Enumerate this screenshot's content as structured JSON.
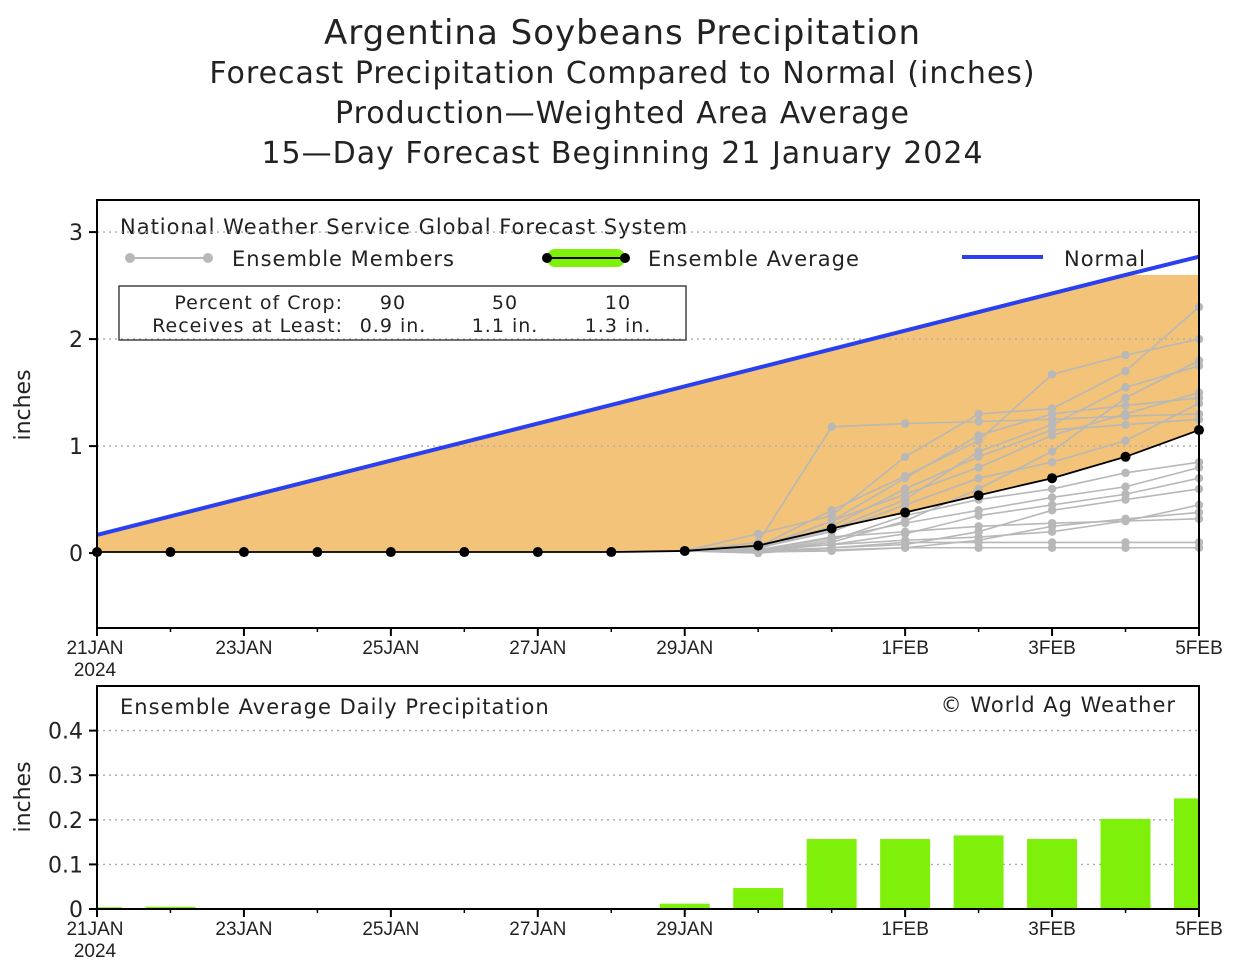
{
  "titles": {
    "line1": "Argentina Soybeans Precipitation",
    "line2": "Forecast Precipitation Compared to Normal (inches)",
    "line3": "Production—Weighted Area Average",
    "line4": "15—Day Forecast Beginning 21 January 2024"
  },
  "colors": {
    "normal": "#2a3ff0",
    "fill": "#f2c378",
    "average": "#000000",
    "members": "#b8b8b8",
    "bars": "#7ef00a",
    "grid": "#aaaaaa"
  },
  "chart_data": [
    {
      "type": "line",
      "title": "National Weather Service Global Forecast System",
      "ylabel": "inches",
      "ylim": [
        -0.7,
        3.3
      ],
      "yticks": [
        "0",
        "1",
        "2",
        "3"
      ],
      "xlim": [
        0,
        15
      ],
      "x_tick_labels": [
        {
          "day": 0,
          "label": "21JAN",
          "sub": "2024"
        },
        {
          "day": 2,
          "label": "23JAN"
        },
        {
          "day": 4,
          "label": "25JAN"
        },
        {
          "day": 6,
          "label": "27JAN"
        },
        {
          "day": 8,
          "label": "29JAN"
        },
        {
          "day": 11,
          "label": "1FEB"
        },
        {
          "day": 13,
          "label": "3FEB"
        },
        {
          "day": 15,
          "label": "5FEB"
        }
      ],
      "legend": {
        "members_label": "Ensemble Members",
        "average_label": "Ensemble Average",
        "normal_label": "Normal"
      },
      "crop_table": {
        "row1_label": "Percent of Crop:",
        "row2_label": "Receives at Least:",
        "percents": [
          "90",
          "50",
          "10"
        ],
        "amounts": [
          "0.9 in.",
          "1.1 in.",
          "1.3 in."
        ]
      },
      "normal": {
        "x": [
          0,
          14,
          15
        ],
        "y": [
          0.17,
          2.6,
          2.77
        ]
      },
      "normal_fill_cap": 2.6,
      "ensemble_average": {
        "x": [
          0,
          1,
          2,
          3,
          4,
          5,
          6,
          7,
          8,
          9,
          10,
          11,
          12,
          13,
          14,
          15
        ],
        "y": [
          0.01,
          0.01,
          0.01,
          0.01,
          0.01,
          0.01,
          0.01,
          0.01,
          0.02,
          0.07,
          0.23,
          0.38,
          0.54,
          0.7,
          0.9,
          1.15
        ]
      },
      "ensemble_members": [
        {
          "y9": 0.03,
          "y10": 0.08,
          "y11": 0.12,
          "y12": 0.15,
          "y13": 0.2,
          "y14": 0.3,
          "y15": 0.45
        },
        {
          "y9": 0.1,
          "y10": 1.18,
          "y11": 1.21,
          "y12": 1.23,
          "y13": 1.25,
          "y14": 1.28,
          "y15": 1.3
        },
        {
          "y9": 0.06,
          "y10": 0.4,
          "y11": 0.72,
          "y12": 1.05,
          "y13": 1.67,
          "y14": 1.85,
          "y15": 2.0
        },
        {
          "y9": 0.02,
          "y10": 0.05,
          "y11": 0.1,
          "y12": 0.1,
          "y13": 0.1,
          "y14": 0.1,
          "y15": 0.1
        },
        {
          "y9": 0.02,
          "y10": 0.1,
          "y11": 0.3,
          "y12": 0.6,
          "y13": 0.95,
          "y14": 1.45,
          "y15": 1.8
        },
        {
          "y9": 0.04,
          "y10": 0.3,
          "y11": 0.55,
          "y12": 0.8,
          "y13": 1.1,
          "y14": 1.3,
          "y15": 1.5
        },
        {
          "y9": 0.01,
          "y10": 0.02,
          "y11": 0.05,
          "y12": 0.12,
          "y13": 0.25,
          "y14": 0.32,
          "y15": 0.38
        },
        {
          "y9": 0.05,
          "y10": 0.2,
          "y11": 0.45,
          "y12": 0.7,
          "y13": 0.85,
          "y14": 1.05,
          "y15": 1.4
        },
        {
          "y9": 0.18,
          "y10": 0.35,
          "y11": 0.9,
          "y12": 1.3,
          "y13": 1.35,
          "y14": 1.7,
          "y15": 2.3
        },
        {
          "y9": 0.0,
          "y10": 0.05,
          "y11": 0.08,
          "y12": 0.2,
          "y13": 0.4,
          "y14": 0.5,
          "y15": 0.6
        },
        {
          "y9": 0.03,
          "y10": 0.15,
          "y11": 0.2,
          "y12": 0.25,
          "y13": 0.28,
          "y14": 0.3,
          "y15": 0.32
        },
        {
          "y9": 0.02,
          "y10": 0.12,
          "y11": 0.35,
          "y12": 0.5,
          "y13": 0.6,
          "y14": 0.75,
          "y15": 0.85
        },
        {
          "y9": 0.04,
          "y10": 0.25,
          "y11": 0.6,
          "y12": 0.9,
          "y13": 1.15,
          "y14": 1.2,
          "y15": 1.25
        },
        {
          "y9": 0.01,
          "y10": 0.03,
          "y11": 0.05,
          "y12": 0.05,
          "y13": 0.05,
          "y14": 0.05,
          "y15": 0.05
        },
        {
          "y9": 0.06,
          "y10": 0.22,
          "y11": 0.5,
          "y12": 0.95,
          "y13": 1.2,
          "y14": 1.55,
          "y15": 1.75
        },
        {
          "y9": 0.02,
          "y10": 0.08,
          "y11": 0.18,
          "y12": 0.35,
          "y13": 0.45,
          "y14": 0.55,
          "y15": 0.7
        },
        {
          "y9": 0.03,
          "y10": 0.14,
          "y11": 0.28,
          "y12": 0.4,
          "y13": 0.52,
          "y14": 0.62,
          "y15": 0.8
        },
        {
          "y9": 0.05,
          "y10": 0.3,
          "y11": 0.7,
          "y12": 1.1,
          "y13": 1.3,
          "y14": 1.38,
          "y15": 1.45
        }
      ]
    },
    {
      "type": "bar",
      "title": "Ensemble Average Daily Precipitation",
      "credit": "© World Ag Weather",
      "ylabel": "inches",
      "ylim": [
        0,
        0.5
      ],
      "yticks": [
        "0",
        "0.1",
        "0.2",
        "0.3",
        "0.4"
      ],
      "xlim": [
        0,
        15
      ],
      "x_tick_labels": [
        {
          "day": 0,
          "label": "21JAN",
          "sub": "2024"
        },
        {
          "day": 2,
          "label": "23JAN"
        },
        {
          "day": 4,
          "label": "25JAN"
        },
        {
          "day": 6,
          "label": "27JAN"
        },
        {
          "day": 8,
          "label": "29JAN"
        },
        {
          "day": 11,
          "label": "1FEB"
        },
        {
          "day": 13,
          "label": "3FEB"
        },
        {
          "day": 15,
          "label": "5FEB"
        }
      ],
      "days": [
        0,
        1,
        2,
        3,
        4,
        5,
        6,
        7,
        8,
        9,
        10,
        11,
        12,
        13,
        14,
        15
      ],
      "values": [
        0.004,
        0.005,
        0.001,
        0.002,
        0.001,
        0.001,
        0.001,
        0.001,
        0.012,
        0.047,
        0.157,
        0.157,
        0.165,
        0.157,
        0.202,
        0.248
      ]
    }
  ]
}
